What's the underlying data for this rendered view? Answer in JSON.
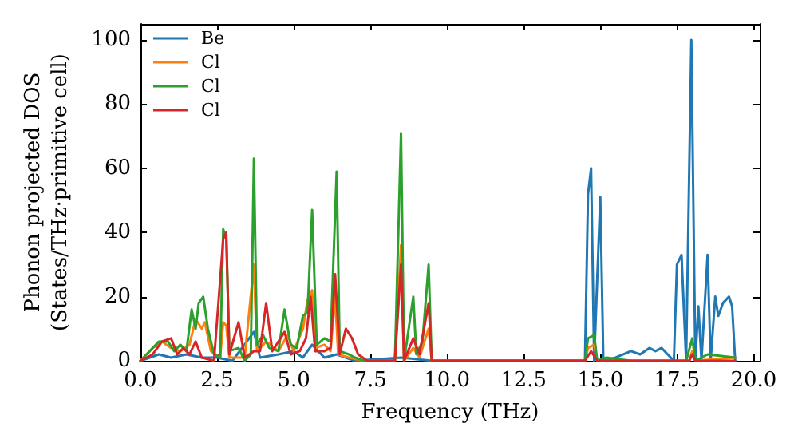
{
  "chart_data": {
    "type": "line",
    "xlabel": "Frequency (THz)",
    "ylabel": "Phonon projected DOS\n(States/THz·primitive cell)",
    "xlim": [
      0,
      20.2
    ],
    "ylim": [
      0,
      105
    ],
    "xticks": [
      {
        "value": 0,
        "label": "0.0"
      },
      {
        "value": 2.5,
        "label": "2.5"
      },
      {
        "value": 5,
        "label": "5.0"
      },
      {
        "value": 7.5,
        "label": "7.5"
      },
      {
        "value": 10,
        "label": "10.0"
      },
      {
        "value": 12.5,
        "label": "12.5"
      },
      {
        "value": 15,
        "label": "15.0"
      },
      {
        "value": 17.5,
        "label": "17.5"
      },
      {
        "value": 20,
        "label": "20.0"
      }
    ],
    "yticks": [
      0,
      20,
      40,
      60,
      80,
      100
    ],
    "legend": "top left",
    "grid": false,
    "series": [
      {
        "name": "Be",
        "color": "#1f77b4",
        "x": [
          0,
          0.3,
          0.6,
          1,
          1.5,
          2,
          2.5,
          3,
          3.7,
          3.9,
          4.5,
          5,
          5.3,
          5.6,
          6,
          6.4,
          7,
          8.5,
          9.5,
          14.5,
          14.6,
          14.7,
          14.8,
          15,
          15.1,
          15.5,
          16,
          16.3,
          16.6,
          16.8,
          17,
          17.2,
          17.4,
          17.5,
          17.65,
          17.8,
          17.97,
          18.1,
          18.2,
          18.3,
          18.5,
          18.6,
          18.75,
          18.85,
          19,
          19.2,
          19.3,
          19.4
        ],
        "values": [
          0,
          1,
          2,
          1,
          2,
          1,
          1,
          0,
          9,
          1,
          2,
          3,
          1,
          5,
          1,
          2,
          0,
          1,
          0,
          0,
          52,
          60,
          0,
          51,
          0,
          1,
          3,
          2,
          4,
          3,
          4,
          2,
          0,
          30,
          33,
          0,
          100,
          0,
          17,
          0,
          33,
          0,
          20,
          14,
          18,
          20,
          17,
          0
        ]
      },
      {
        "name": "Cl",
        "color": "#ff7f0e",
        "x": [
          0,
          0.4,
          0.7,
          1,
          1.3,
          1.6,
          1.8,
          2,
          2.1,
          2.3,
          2.6,
          2.7,
          2.8,
          2.9,
          3.4,
          3.7,
          3.8,
          4.1,
          4.5,
          4.8,
          5,
          5.3,
          5.45,
          5.6,
          5.7,
          6,
          6.2,
          6.35,
          6.45,
          6.8,
          7.3,
          8.3,
          8.5,
          8.6,
          8.9,
          9.1,
          9.4,
          9.5,
          14.5,
          14.6,
          14.8,
          14.9,
          17.9,
          18,
          18.1,
          19.4
        ],
        "values": [
          0,
          4,
          6,
          4,
          3,
          5,
          13,
          10,
          12,
          3,
          1,
          12,
          11,
          1,
          1,
          30,
          3,
          6,
          3,
          8,
          3,
          10,
          19,
          22,
          4,
          5,
          3,
          20,
          2,
          1,
          0,
          0,
          36,
          0,
          4,
          1,
          10,
          0,
          0,
          4,
          5,
          0,
          0,
          3,
          0,
          1
        ]
      },
      {
        "name": "Cl",
        "color": "#2ca02c",
        "x": [
          0,
          0.3,
          0.6,
          0.9,
          1.1,
          1.3,
          1.5,
          1.67,
          1.8,
          1.9,
          2.05,
          2.2,
          2.4,
          2.6,
          2.7,
          2.8,
          2.9,
          3.2,
          3.4,
          3.6,
          3.7,
          3.8,
          4,
          4.2,
          4.5,
          4.7,
          4.9,
          5.1,
          5.3,
          5.45,
          5.6,
          5.75,
          6,
          6.2,
          6.4,
          6.5,
          6.8,
          7,
          7.3,
          8.3,
          8.5,
          8.6,
          8.9,
          9,
          9.2,
          9.4,
          9.5,
          14.5,
          14.6,
          14.8,
          14.9,
          15.2,
          16,
          17.8,
          18,
          18.1,
          18.5,
          19.4
        ],
        "values": [
          0,
          3,
          6,
          6,
          3,
          5,
          3,
          16,
          10,
          18,
          20,
          10,
          2,
          1,
          41,
          38,
          3,
          4,
          0,
          2,
          63,
          5,
          8,
          4,
          3,
          16,
          5,
          4,
          14,
          15,
          47,
          5,
          7,
          6,
          59,
          3,
          2,
          1,
          0,
          0,
          71,
          0,
          20,
          2,
          6,
          30,
          0,
          0,
          7,
          8,
          0,
          1,
          0,
          0,
          7,
          0,
          2,
          1
        ]
      },
      {
        "name": "Cl",
        "color": "#d62728",
        "x": [
          0,
          0.4,
          0.7,
          1,
          1.2,
          1.4,
          1.6,
          1.8,
          2,
          2.4,
          2.7,
          2.8,
          2.9,
          3.2,
          3.4,
          3.7,
          3.9,
          4.1,
          4.3,
          4.7,
          4.9,
          5.2,
          5.4,
          5.55,
          5.7,
          6,
          6.2,
          6.35,
          6.5,
          6.7,
          6.9,
          7.1,
          7.4,
          8.3,
          8.5,
          8.6,
          8.9,
          9.1,
          9.4,
          9.5,
          14.5,
          14.7,
          14.9,
          17.9,
          18,
          18.1,
          19.4
        ],
        "values": [
          0,
          2,
          6,
          7,
          2,
          4,
          2,
          6,
          1,
          0,
          38,
          40,
          2,
          12,
          1,
          3,
          3,
          18,
          3,
          9,
          2,
          3,
          7,
          20,
          3,
          3,
          4,
          27,
          2,
          10,
          7,
          2,
          0,
          0,
          30,
          0,
          7,
          2,
          18,
          0,
          0,
          3,
          0,
          0,
          2,
          0,
          0
        ]
      }
    ]
  }
}
